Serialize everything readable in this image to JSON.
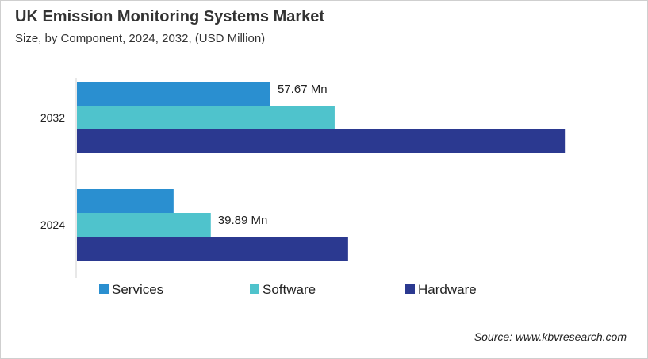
{
  "chart_data": {
    "type": "bar",
    "orientation": "horizontal",
    "title": "UK Emission Monitoring Systems Market",
    "subtitle": "Size, by Component, 2024, 2032, (USD Million)",
    "categories": [
      "2032",
      "2024"
    ],
    "series": [
      {
        "name": "Services",
        "color": "#2a8fd0",
        "values": [
          57.67,
          28.8
        ]
      },
      {
        "name": "Software",
        "color": "#4fc3cc",
        "values": [
          76.8,
          39.89
        ]
      },
      {
        "name": "Hardware",
        "color": "#2b3990",
        "values": [
          145.4,
          80.8
        ]
      }
    ],
    "data_labels": [
      {
        "category": "2032",
        "series": "Services",
        "text": "57.67 Mn"
      },
      {
        "category": "2024",
        "series": "Software",
        "text": "39.89 Mn"
      }
    ],
    "xlim": [
      0,
      150
    ],
    "grid": false,
    "legend_position": "bottom"
  },
  "source": "Source: www.kbvresearch.com"
}
